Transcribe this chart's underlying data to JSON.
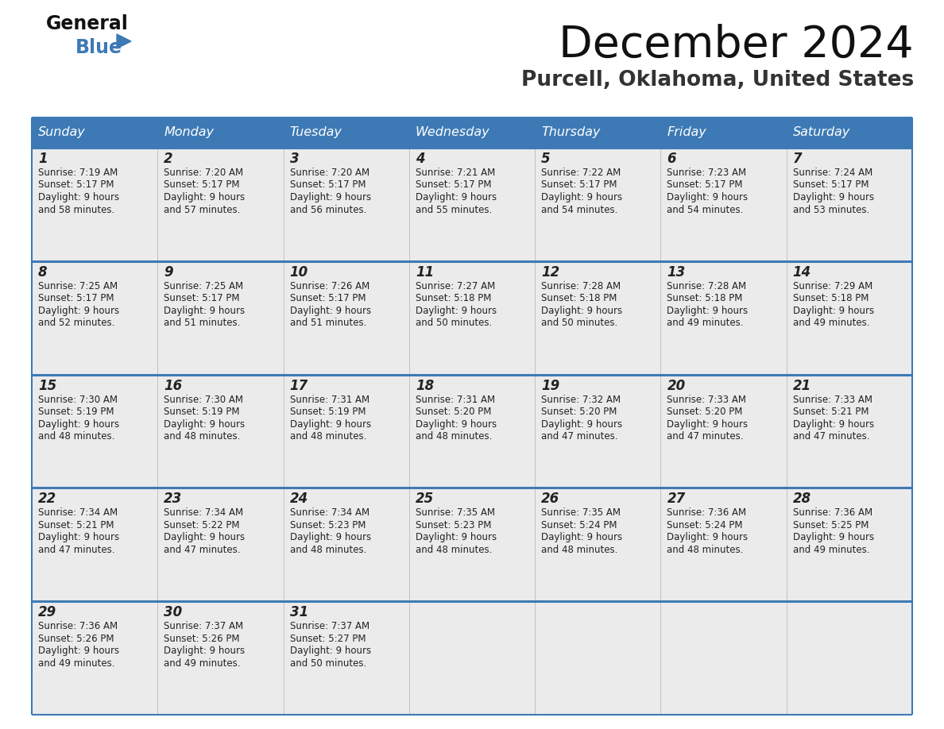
{
  "title": "December 2024",
  "subtitle": "Purcell, Oklahoma, United States",
  "header_bg_color": "#3d7ab5",
  "header_text_color": "#ffffff",
  "day_names": [
    "Sunday",
    "Monday",
    "Tuesday",
    "Wednesday",
    "Thursday",
    "Friday",
    "Saturday"
  ],
  "cell_bg": "#ebebeb",
  "border_color": "#3d7ab5",
  "text_color": "#222222",
  "days": [
    {
      "day": 1,
      "col": 0,
      "row": 0,
      "sunrise": "7:19 AM",
      "sunset": "5:17 PM",
      "daylight_min": "58 minutes."
    },
    {
      "day": 2,
      "col": 1,
      "row": 0,
      "sunrise": "7:20 AM",
      "sunset": "5:17 PM",
      "daylight_min": "57 minutes."
    },
    {
      "day": 3,
      "col": 2,
      "row": 0,
      "sunrise": "7:20 AM",
      "sunset": "5:17 PM",
      "daylight_min": "56 minutes."
    },
    {
      "day": 4,
      "col": 3,
      "row": 0,
      "sunrise": "7:21 AM",
      "sunset": "5:17 PM",
      "daylight_min": "55 minutes."
    },
    {
      "day": 5,
      "col": 4,
      "row": 0,
      "sunrise": "7:22 AM",
      "sunset": "5:17 PM",
      "daylight_min": "54 minutes."
    },
    {
      "day": 6,
      "col": 5,
      "row": 0,
      "sunrise": "7:23 AM",
      "sunset": "5:17 PM",
      "daylight_min": "54 minutes."
    },
    {
      "day": 7,
      "col": 6,
      "row": 0,
      "sunrise": "7:24 AM",
      "sunset": "5:17 PM",
      "daylight_min": "53 minutes."
    },
    {
      "day": 8,
      "col": 0,
      "row": 1,
      "sunrise": "7:25 AM",
      "sunset": "5:17 PM",
      "daylight_min": "52 minutes."
    },
    {
      "day": 9,
      "col": 1,
      "row": 1,
      "sunrise": "7:25 AM",
      "sunset": "5:17 PM",
      "daylight_min": "51 minutes."
    },
    {
      "day": 10,
      "col": 2,
      "row": 1,
      "sunrise": "7:26 AM",
      "sunset": "5:17 PM",
      "daylight_min": "51 minutes."
    },
    {
      "day": 11,
      "col": 3,
      "row": 1,
      "sunrise": "7:27 AM",
      "sunset": "5:18 PM",
      "daylight_min": "50 minutes."
    },
    {
      "day": 12,
      "col": 4,
      "row": 1,
      "sunrise": "7:28 AM",
      "sunset": "5:18 PM",
      "daylight_min": "50 minutes."
    },
    {
      "day": 13,
      "col": 5,
      "row": 1,
      "sunrise": "7:28 AM",
      "sunset": "5:18 PM",
      "daylight_min": "49 minutes."
    },
    {
      "day": 14,
      "col": 6,
      "row": 1,
      "sunrise": "7:29 AM",
      "sunset": "5:18 PM",
      "daylight_min": "49 minutes."
    },
    {
      "day": 15,
      "col": 0,
      "row": 2,
      "sunrise": "7:30 AM",
      "sunset": "5:19 PM",
      "daylight_min": "48 minutes."
    },
    {
      "day": 16,
      "col": 1,
      "row": 2,
      "sunrise": "7:30 AM",
      "sunset": "5:19 PM",
      "daylight_min": "48 minutes."
    },
    {
      "day": 17,
      "col": 2,
      "row": 2,
      "sunrise": "7:31 AM",
      "sunset": "5:19 PM",
      "daylight_min": "48 minutes."
    },
    {
      "day": 18,
      "col": 3,
      "row": 2,
      "sunrise": "7:31 AM",
      "sunset": "5:20 PM",
      "daylight_min": "48 minutes."
    },
    {
      "day": 19,
      "col": 4,
      "row": 2,
      "sunrise": "7:32 AM",
      "sunset": "5:20 PM",
      "daylight_min": "47 minutes."
    },
    {
      "day": 20,
      "col": 5,
      "row": 2,
      "sunrise": "7:33 AM",
      "sunset": "5:20 PM",
      "daylight_min": "47 minutes."
    },
    {
      "day": 21,
      "col": 6,
      "row": 2,
      "sunrise": "7:33 AM",
      "sunset": "5:21 PM",
      "daylight_min": "47 minutes."
    },
    {
      "day": 22,
      "col": 0,
      "row": 3,
      "sunrise": "7:34 AM",
      "sunset": "5:21 PM",
      "daylight_min": "47 minutes."
    },
    {
      "day": 23,
      "col": 1,
      "row": 3,
      "sunrise": "7:34 AM",
      "sunset": "5:22 PM",
      "daylight_min": "47 minutes."
    },
    {
      "day": 24,
      "col": 2,
      "row": 3,
      "sunrise": "7:34 AM",
      "sunset": "5:23 PM",
      "daylight_min": "48 minutes."
    },
    {
      "day": 25,
      "col": 3,
      "row": 3,
      "sunrise": "7:35 AM",
      "sunset": "5:23 PM",
      "daylight_min": "48 minutes."
    },
    {
      "day": 26,
      "col": 4,
      "row": 3,
      "sunrise": "7:35 AM",
      "sunset": "5:24 PM",
      "daylight_min": "48 minutes."
    },
    {
      "day": 27,
      "col": 5,
      "row": 3,
      "sunrise": "7:36 AM",
      "sunset": "5:24 PM",
      "daylight_min": "48 minutes."
    },
    {
      "day": 28,
      "col": 6,
      "row": 3,
      "sunrise": "7:36 AM",
      "sunset": "5:25 PM",
      "daylight_min": "49 minutes."
    },
    {
      "day": 29,
      "col": 0,
      "row": 4,
      "sunrise": "7:36 AM",
      "sunset": "5:26 PM",
      "daylight_min": "49 minutes."
    },
    {
      "day": 30,
      "col": 1,
      "row": 4,
      "sunrise": "7:37 AM",
      "sunset": "5:26 PM",
      "daylight_min": "49 minutes."
    },
    {
      "day": 31,
      "col": 2,
      "row": 4,
      "sunrise": "7:37 AM",
      "sunset": "5:27 PM",
      "daylight_min": "50 minutes."
    }
  ],
  "num_rows": 5,
  "num_cols": 7,
  "logo_triangle_color": "#3d7ab5",
  "fig_width": 11.88,
  "fig_height": 9.18,
  "dpi": 100
}
